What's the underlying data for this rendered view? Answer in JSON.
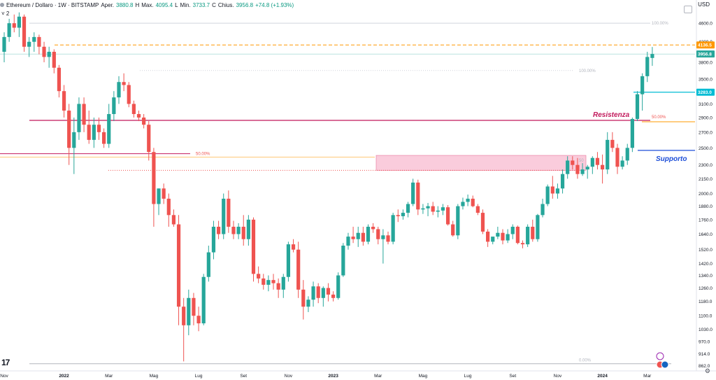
{
  "header": {
    "symbol": "Ethereum / Dollaro · 1W · BITSTAMP",
    "open_label": "Aper.",
    "open": "3880.8",
    "high_label": "H",
    "high_prefix": "Max.",
    "high": "4095.4",
    "low_label": "L",
    "low_prefix": "Min.",
    "low": "3733.7",
    "close_label": "C",
    "close_prefix": "Chius.",
    "close": "3956.8",
    "change": "+74.8 (+1.93%)",
    "collapse": "˅ 2",
    "currency": "USD"
  },
  "colors": {
    "up": "#26a69a",
    "down": "#ef5350",
    "orange": "#ff9800",
    "resist": "#c2185b",
    "support": "#1e4fd8",
    "cyan": "#00bcd4",
    "zone": "#f8bbd0"
  },
  "chart_data": {
    "type": "candlestick",
    "y_scale": "log",
    "y_ticks": [
      "4600.0",
      "4200.0",
      "3800.0",
      "3500.0",
      "3100.0",
      "2900.0",
      "2700.0",
      "2500.0",
      "2300.0",
      "2150.0",
      "2000.0",
      "1880.0",
      "1760.0",
      "1640.0",
      "1520.0",
      "1420.0",
      "1340.0",
      "1260.0",
      "1180.0",
      "1100.0",
      "1030.0",
      "970.0",
      "914.0",
      "862.0"
    ],
    "x_ticks": [
      "Nov",
      "2022",
      "Mar",
      "Mag",
      "Lug",
      "Set",
      "Nov",
      "2023",
      "Mar",
      "Mag",
      "Lug",
      "Set",
      "Nov",
      "2024",
      "Mar"
    ],
    "candles_ohlc": [
      [
        4000,
        4400,
        3800,
        4300
      ],
      [
        4300,
        4700,
        4200,
        4600
      ],
      [
        4600,
        4800,
        4400,
        4500
      ],
      [
        4500,
        4850,
        4300,
        4750
      ],
      [
        4750,
        4800,
        4000,
        4100
      ],
      [
        4100,
        4300,
        3900,
        4200
      ],
      [
        4200,
        4400,
        4000,
        4300
      ],
      [
        4300,
        4350,
        3950,
        4100
      ],
      [
        4100,
        4200,
        3800,
        3900
      ],
      [
        3900,
        4100,
        3700,
        4000
      ],
      [
        4000,
        4050,
        3600,
        3700
      ],
      [
        3700,
        3750,
        3200,
        3300
      ],
      [
        3300,
        3400,
        2900,
        3000
      ],
      [
        3000,
        3100,
        2300,
        2500
      ],
      [
        2500,
        2900,
        2200,
        2700
      ],
      [
        2700,
        3200,
        2600,
        3100
      ],
      [
        3100,
        3200,
        2700,
        2800
      ],
      [
        2800,
        3000,
        2550,
        2600
      ],
      [
        2600,
        2900,
        2500,
        2800
      ],
      [
        2800,
        2900,
        2600,
        2700
      ],
      [
        2700,
        2750,
        2500,
        2550
      ],
      [
        2550,
        3100,
        2500,
        2950
      ],
      [
        2950,
        3300,
        2850,
        3200
      ],
      [
        3200,
        3550,
        3100,
        3450
      ],
      [
        3450,
        3600,
        3300,
        3400
      ],
      [
        3400,
        3450,
        3050,
        3100
      ],
      [
        3100,
        3150,
        2900,
        2950
      ],
      [
        2950,
        3000,
        2850,
        2900
      ],
      [
        2900,
        2950,
        2750,
        2800
      ],
      [
        2800,
        2850,
        2350,
        2450
      ],
      [
        2450,
        2500,
        1700,
        1900
      ],
      [
        1900,
        2050,
        1800,
        2050
      ],
      [
        2050,
        2100,
        1900,
        1950
      ],
      [
        1950,
        2000,
        1700,
        1800
      ],
      [
        1800,
        1850,
        1700,
        1720
      ],
      [
        1720,
        1800,
        1050,
        1150
      ],
      [
        1150,
        1200,
        880,
        1050
      ],
      [
        1050,
        1250,
        1000,
        1200
      ],
      [
        1200,
        1230,
        1050,
        1100
      ],
      [
        1100,
        1150,
        1020,
        1060
      ],
      [
        1060,
        1350,
        1050,
        1330
      ],
      [
        1330,
        1550,
        1300,
        1500
      ],
      [
        1500,
        1750,
        1450,
        1700
      ],
      [
        1700,
        1750,
        1600,
        1640
      ],
      [
        1640,
        2000,
        1600,
        1950
      ],
      [
        1950,
        2030,
        1650,
        1700
      ],
      [
        1700,
        1750,
        1600,
        1640
      ],
      [
        1640,
        1730,
        1600,
        1700
      ],
      [
        1700,
        1800,
        1550,
        1600
      ],
      [
        1600,
        1800,
        1550,
        1760
      ],
      [
        1760,
        1780,
        1300,
        1350
      ],
      [
        1350,
        1400,
        1290,
        1320
      ],
      [
        1320,
        1350,
        1250,
        1280
      ],
      [
        1280,
        1340,
        1240,
        1310
      ],
      [
        1310,
        1350,
        1250,
        1290
      ],
      [
        1290,
        1320,
        1200,
        1250
      ],
      [
        1250,
        1350,
        1200,
        1330
      ],
      [
        1330,
        1580,
        1300,
        1560
      ],
      [
        1560,
        1600,
        1500,
        1520
      ],
      [
        1520,
        1580,
        1200,
        1250
      ],
      [
        1250,
        1310,
        1080,
        1150
      ],
      [
        1150,
        1210,
        1120,
        1190
      ],
      [
        1190,
        1300,
        1150,
        1270
      ],
      [
        1270,
        1290,
        1170,
        1200
      ],
      [
        1200,
        1270,
        1150,
        1260
      ],
      [
        1260,
        1290,
        1180,
        1220
      ],
      [
        1220,
        1240,
        1180,
        1200
      ],
      [
        1200,
        1360,
        1190,
        1340
      ],
      [
        1340,
        1570,
        1330,
        1550
      ],
      [
        1550,
        1650,
        1520,
        1620
      ],
      [
        1620,
        1700,
        1570,
        1600
      ],
      [
        1600,
        1700,
        1540,
        1650
      ],
      [
        1650,
        1700,
        1550,
        1580
      ],
      [
        1580,
        1720,
        1560,
        1700
      ],
      [
        1700,
        1730,
        1650,
        1680
      ],
      [
        1680,
        1700,
        1560,
        1600
      ],
      [
        1600,
        1680,
        1420,
        1630
      ],
      [
        1630,
        1660,
        1560,
        1580
      ],
      [
        1580,
        1820,
        1560,
        1800
      ],
      [
        1800,
        1850,
        1740,
        1790
      ],
      [
        1790,
        1850,
        1760,
        1820
      ],
      [
        1820,
        1920,
        1780,
        1900
      ],
      [
        1900,
        2150,
        1880,
        2110
      ],
      [
        2110,
        2140,
        1800,
        1850
      ],
      [
        1850,
        1900,
        1810,
        1860
      ],
      [
        1860,
        1910,
        1790,
        1880
      ],
      [
        1880,
        1920,
        1800,
        1830
      ],
      [
        1830,
        1880,
        1780,
        1840
      ],
      [
        1840,
        1900,
        1800,
        1870
      ],
      [
        1870,
        1890,
        1710,
        1720
      ],
      [
        1720,
        1750,
        1620,
        1630
      ],
      [
        1630,
        1900,
        1600,
        1880
      ],
      [
        1880,
        1960,
        1850,
        1920
      ],
      [
        1920,
        1990,
        1880,
        1950
      ],
      [
        1950,
        1980,
        1870,
        1880
      ],
      [
        1880,
        1900,
        1800,
        1820
      ],
      [
        1820,
        1850,
        1640,
        1660
      ],
      [
        1660,
        1680,
        1540,
        1580
      ],
      [
        1580,
        1600,
        1560,
        1620
      ],
      [
        1620,
        1700,
        1600,
        1650
      ],
      [
        1650,
        1680,
        1560,
        1590
      ],
      [
        1590,
        1680,
        1570,
        1640
      ],
      [
        1640,
        1720,
        1600,
        1700
      ],
      [
        1700,
        1710,
        1560,
        1570
      ],
      [
        1570,
        1590,
        1530,
        1560
      ],
      [
        1560,
        1720,
        1540,
        1700
      ],
      [
        1700,
        1760,
        1580,
        1600
      ],
      [
        1600,
        1810,
        1580,
        1800
      ],
      [
        1800,
        1950,
        1780,
        1900
      ],
      [
        1900,
        2090,
        1880,
        2070
      ],
      [
        2070,
        2180,
        1950,
        2000
      ],
      [
        2000,
        2100,
        1950,
        2050
      ],
      [
        2050,
        2250,
        2000,
        2200
      ],
      [
        2200,
        2400,
        2150,
        2350
      ],
      [
        2350,
        2400,
        2250,
        2300
      ],
      [
        2300,
        2380,
        2150,
        2200
      ],
      [
        2200,
        2320,
        2180,
        2250
      ],
      [
        2250,
        2300,
        2150,
        2280
      ],
      [
        2280,
        2400,
        2200,
        2380
      ],
      [
        2380,
        2450,
        2250,
        2300
      ],
      [
        2300,
        2420,
        2100,
        2250
      ],
      [
        2250,
        2700,
        2200,
        2600
      ],
      [
        2600,
        2700,
        2450,
        2500
      ],
      [
        2500,
        2550,
        2200,
        2280
      ],
      [
        2280,
        2400,
        2250,
        2350
      ],
      [
        2350,
        2550,
        2300,
        2500
      ],
      [
        2500,
        2900,
        2450,
        2880
      ],
      [
        2880,
        3300,
        2850,
        3250
      ],
      [
        3250,
        3600,
        3000,
        3550
      ],
      [
        3550,
        4000,
        3450,
        3900
      ],
      [
        3880.8,
        4095.4,
        3733.7,
        3956.8
      ]
    ],
    "levels": {
      "orange_dashed": 4136.5,
      "last_price": 3956.8,
      "cyan_line": 3283.0,
      "resistance": 2860,
      "support": 2470,
      "fib_upper_100": 4600,
      "fib_mid_100": 3650,
      "fib_50_right": 2860,
      "fib_50_left": 2430,
      "fib_0": 870
    },
    "price_badges": {
      "orange": "4136.5",
      "last": "3956.8",
      "cyan": "3283.0"
    },
    "annotations": {
      "resistance": "Resistenza",
      "support": "Supporto",
      "fib_100_top": "100.00%",
      "fib_100_mid": "100.00%",
      "fib_50_right": "50.00%",
      "fib_50_left": "50.00%",
      "fib_50_zone": "50",
      "fib_0": "0.00%"
    },
    "zone": {
      "from_price": 2240,
      "to_price": 2410
    }
  }
}
